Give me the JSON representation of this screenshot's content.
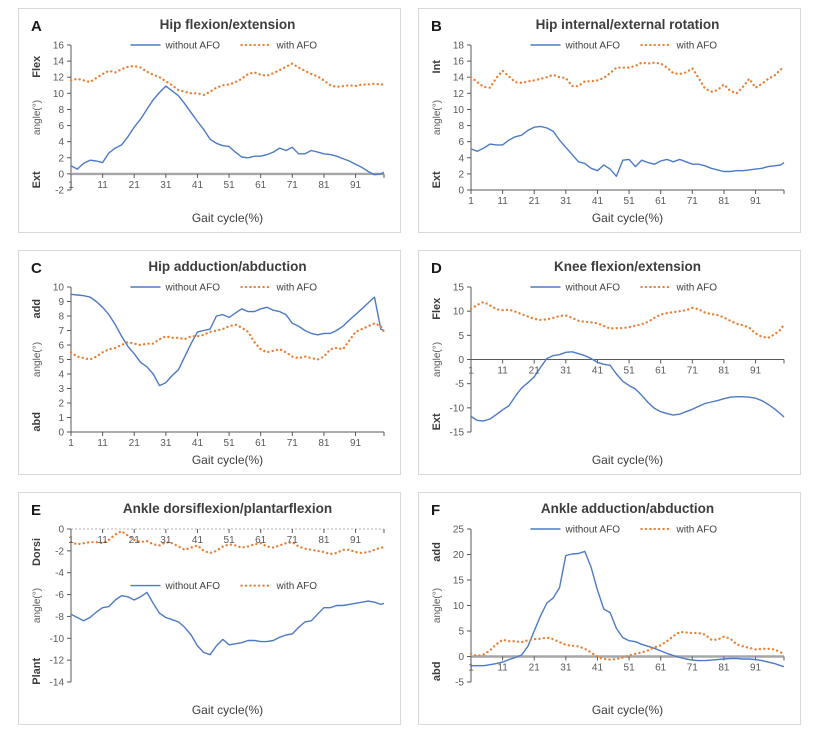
{
  "figure": {
    "background": "#ffffff",
    "panel_border_color": "#d9d9d9"
  },
  "colors": {
    "without_afo": "#4d7ac7",
    "with_afo": "#ED7D31",
    "spine": "#595959",
    "tick_label": "#595959",
    "title": "#3d3d3d",
    "panel_letter": "#1a1a1a",
    "zero_line_bold": "#a6a6a6",
    "zero_line_dotted": "#b3b3b3",
    "legend_text": "#404040"
  },
  "legend_labels": {
    "series1": "without AFO",
    "series2": "with AFO"
  },
  "gait_cycle_x": [
    1,
    3,
    5,
    7,
    9,
    11,
    13,
    15,
    17,
    19,
    21,
    23,
    25,
    27,
    29,
    31,
    33,
    35,
    37,
    39,
    41,
    43,
    45,
    47,
    49,
    51,
    53,
    55,
    57,
    59,
    61,
    63,
    65,
    67,
    69,
    71,
    73,
    75,
    77,
    79,
    81,
    83,
    85,
    87,
    89,
    91,
    93,
    95,
    97,
    99,
    100
  ],
  "chart_data": [
    {
      "type": "line",
      "letter": "A",
      "title": "Hip flexion/extension",
      "xlabel": "Gait cycle(%)",
      "xlim": [
        1,
        100
      ],
      "xtick_labels": [
        1,
        11,
        21,
        31,
        41,
        51,
        61,
        71,
        81,
        91
      ],
      "ylim": [
        -2,
        16
      ],
      "ystep": 2,
      "y_side_labels": {
        "top": "Flex",
        "mid": "angle(°)",
        "bottom": "Ext"
      },
      "zero_axis": "bold",
      "legend_frac": 0,
      "grid": false,
      "legend_position": "top-center",
      "series": [
        {
          "name": "without AFO",
          "style": "solid",
          "values": [
            1.0,
            0.6,
            1.3,
            1.7,
            1.6,
            1.4,
            2.6,
            3.2,
            3.6,
            4.6,
            5.8,
            6.8,
            8.0,
            9.2,
            10.1,
            10.9,
            10.3,
            9.7,
            8.7,
            7.6,
            6.5,
            5.5,
            4.3,
            3.8,
            3.5,
            3.4,
            2.7,
            2.1,
            2.0,
            2.2,
            2.2,
            2.4,
            2.7,
            3.2,
            2.9,
            3.3,
            2.5,
            2.5,
            2.9,
            2.7,
            2.5,
            2.4,
            2.2,
            1.9,
            1.6,
            1.2,
            0.8,
            0.3,
            -0.1,
            0.0,
            0.2
          ]
        },
        {
          "name": "with AFO",
          "style": "dotted",
          "values": [
            11.6,
            11.8,
            11.6,
            11.4,
            11.9,
            12.4,
            12.8,
            12.6,
            13.0,
            13.3,
            13.4,
            13.2,
            12.7,
            12.3,
            12.0,
            11.5,
            11.0,
            10.4,
            10.2,
            10.0,
            10.0,
            9.8,
            10.2,
            10.7,
            11.0,
            11.1,
            11.4,
            11.8,
            12.4,
            12.6,
            12.3,
            12.2,
            12.5,
            12.9,
            13.3,
            13.7,
            13.2,
            12.8,
            12.4,
            12.1,
            11.6,
            11.0,
            10.8,
            10.9,
            11.0,
            10.9,
            11.1,
            11.1,
            11.2,
            11.1,
            11.1
          ]
        }
      ]
    },
    {
      "type": "line",
      "letter": "B",
      "title": "Hip internal/external rotation",
      "xlabel": "Gait cycle(%)",
      "xlim": [
        1,
        100
      ],
      "xtick_labels": [
        1,
        11,
        21,
        31,
        41,
        51,
        61,
        71,
        81,
        91
      ],
      "ylim": [
        0,
        18
      ],
      "ystep": 2,
      "y_side_labels": {
        "top": "Int",
        "mid": "angle(°)",
        "bottom": "Ext"
      },
      "zero_axis": "thin",
      "legend_frac": 0,
      "grid": false,
      "legend_position": "top-center",
      "series": [
        {
          "name": "without AFO",
          "style": "solid",
          "values": [
            5.1,
            4.8,
            5.2,
            5.7,
            5.6,
            5.6,
            6.2,
            6.6,
            6.8,
            7.4,
            7.8,
            7.9,
            7.7,
            7.3,
            6.2,
            5.3,
            4.4,
            3.5,
            3.3,
            2.7,
            2.4,
            3.1,
            2.6,
            1.7,
            3.7,
            3.8,
            2.9,
            3.7,
            3.4,
            3.2,
            3.6,
            3.8,
            3.5,
            3.8,
            3.5,
            3.2,
            3.2,
            3.0,
            2.7,
            2.5,
            2.3,
            2.3,
            2.4,
            2.4,
            2.5,
            2.6,
            2.7,
            2.9,
            3.0,
            3.1,
            3.4
          ]
        },
        {
          "name": "with AFO",
          "style": "dotted",
          "values": [
            14.0,
            13.4,
            12.8,
            12.7,
            13.9,
            14.8,
            14.1,
            13.4,
            13.3,
            13.5,
            13.6,
            13.8,
            14.0,
            14.3,
            14.0,
            13.9,
            12.9,
            12.9,
            13.5,
            13.5,
            13.6,
            13.9,
            14.5,
            15.2,
            15.2,
            15.2,
            15.4,
            15.8,
            15.7,
            15.8,
            15.7,
            15.2,
            14.5,
            14.4,
            14.6,
            15.1,
            13.9,
            12.6,
            12.2,
            12.4,
            13.1,
            12.3,
            12.0,
            12.8,
            13.8,
            12.7,
            13.2,
            13.8,
            14.2,
            15.0,
            14.9
          ]
        }
      ]
    },
    {
      "type": "line",
      "letter": "C",
      "title": "Hip adduction/abduction",
      "xlabel": "Gait cycle(%)",
      "xlim": [
        1,
        100
      ],
      "xtick_labels": [
        1,
        11,
        21,
        31,
        41,
        51,
        61,
        71,
        81,
        91
      ],
      "ylim": [
        0,
        10
      ],
      "ystep": 1,
      "y_side_labels": {
        "top": "add",
        "mid": "angle(°)",
        "bottom": "abd"
      },
      "zero_axis": "thin",
      "legend_frac": 0,
      "grid": false,
      "legend_position": "top-center",
      "series": [
        {
          "name": "without AFO",
          "style": "solid",
          "values": [
            9.5,
            9.45,
            9.4,
            9.3,
            9.0,
            8.6,
            8.1,
            7.4,
            6.6,
            5.9,
            5.4,
            4.8,
            4.5,
            4.0,
            3.2,
            3.4,
            3.9,
            4.3,
            5.2,
            6.1,
            6.9,
            7.0,
            7.1,
            8.0,
            8.1,
            7.9,
            8.2,
            8.5,
            8.3,
            8.3,
            8.5,
            8.6,
            8.4,
            8.3,
            8.1,
            7.5,
            7.3,
            7.0,
            6.8,
            6.7,
            6.8,
            6.8,
            7.0,
            7.3,
            7.7,
            8.1,
            8.5,
            8.9,
            9.3,
            7.1,
            7.0
          ]
        },
        {
          "name": "with AFO",
          "style": "dotted",
          "values": [
            5.5,
            5.2,
            5.1,
            5.0,
            5.2,
            5.5,
            5.7,
            5.8,
            6.0,
            6.2,
            6.1,
            6.0,
            6.1,
            6.1,
            6.4,
            6.6,
            6.5,
            6.5,
            6.4,
            6.6,
            6.6,
            6.7,
            6.9,
            7.0,
            7.1,
            7.3,
            7.4,
            7.2,
            6.9,
            6.2,
            5.7,
            5.5,
            5.6,
            5.7,
            5.5,
            5.2,
            5.1,
            5.2,
            5.1,
            5.0,
            5.2,
            5.7,
            5.8,
            5.7,
            6.3,
            6.9,
            7.1,
            7.3,
            7.5,
            7.3,
            6.9
          ]
        }
      ]
    },
    {
      "type": "line",
      "letter": "D",
      "title": "Knee flexion/extension",
      "xlabel": "Gait cycle(%)",
      "xlim": [
        1,
        100
      ],
      "xtick_labels": [
        1,
        11,
        21,
        31,
        41,
        51,
        61,
        71,
        81,
        91
      ],
      "ylim": [
        -15,
        15
      ],
      "ystep": 5,
      "y_side_labels": {
        "top": "Flex",
        "mid": "angle(°)",
        "bottom": "Ext"
      },
      "zero_axis": "thin",
      "legend_frac": 0,
      "grid": false,
      "legend_position": "top-center",
      "series": [
        {
          "name": "without AFO",
          "style": "solid",
          "values": [
            -11.8,
            -12.6,
            -12.7,
            -12.3,
            -11.4,
            -10.4,
            -9.6,
            -7.6,
            -5.9,
            -4.8,
            -3.6,
            -1.6,
            0.2,
            0.8,
            1.0,
            1.5,
            1.6,
            1.2,
            0.8,
            0.2,
            -0.6,
            -1.0,
            -1.2,
            -3.0,
            -4.5,
            -5.4,
            -6.1,
            -7.4,
            -8.9,
            -10.1,
            -10.8,
            -11.2,
            -11.5,
            -11.3,
            -10.8,
            -10.3,
            -9.7,
            -9.1,
            -8.8,
            -8.5,
            -8.1,
            -7.8,
            -7.7,
            -7.7,
            -7.8,
            -8.0,
            -8.5,
            -9.3,
            -10.2,
            -11.3,
            -11.9
          ]
        },
        {
          "name": "with AFO",
          "style": "dotted",
          "values": [
            10.5,
            11.3,
            11.9,
            11.2,
            10.4,
            10.2,
            10.3,
            9.9,
            9.4,
            8.9,
            8.4,
            8.2,
            8.3,
            8.6,
            9.0,
            9.1,
            8.6,
            8.0,
            7.8,
            7.7,
            7.5,
            6.9,
            6.4,
            6.5,
            6.5,
            6.7,
            7.0,
            7.3,
            7.8,
            8.6,
            9.3,
            9.6,
            9.8,
            10.0,
            10.2,
            10.7,
            10.4,
            9.7,
            9.4,
            9.2,
            8.7,
            8.0,
            7.4,
            7.1,
            6.6,
            5.4,
            4.7,
            4.5,
            5.2,
            6.2,
            7.3
          ]
        }
      ]
    },
    {
      "type": "line",
      "letter": "E",
      "title": "Ankle dorsiflexion/plantarflexion",
      "xlabel": "Gait cycle(%)",
      "xlim": [
        1,
        100
      ],
      "xtick_labels": [
        1,
        11,
        21,
        31,
        41,
        51,
        61,
        71,
        81,
        91
      ],
      "ylim": [
        -14,
        0
      ],
      "ystep": 2,
      "y_side_labels": {
        "top": "Dorsi",
        "mid": "angle(°)",
        "bottom": "Plant"
      },
      "zero_axis": "dotted",
      "legend_frac": 0.37,
      "grid": false,
      "legend_position": "middle-center",
      "series": [
        {
          "name": "without AFO",
          "style": "solid",
          "values": [
            -7.8,
            -8.1,
            -8.4,
            -8.1,
            -7.6,
            -7.2,
            -7.1,
            -6.5,
            -6.1,
            -6.2,
            -6.5,
            -6.2,
            -5.8,
            -6.8,
            -7.7,
            -8.1,
            -8.3,
            -8.5,
            -9.0,
            -9.7,
            -10.7,
            -11.3,
            -11.5,
            -10.7,
            -10.1,
            -10.6,
            -10.5,
            -10.4,
            -10.2,
            -10.2,
            -10.3,
            -10.3,
            -10.2,
            -9.9,
            -9.7,
            -9.6,
            -9.0,
            -8.5,
            -8.4,
            -7.8,
            -7.2,
            -7.2,
            -7.0,
            -7.0,
            -6.9,
            -6.8,
            -6.7,
            -6.6,
            -6.7,
            -6.9,
            -6.8
          ]
        },
        {
          "name": "with AFO",
          "style": "dotted",
          "values": [
            -1.2,
            -1.4,
            -1.3,
            -1.2,
            -1.2,
            -1.3,
            -1.0,
            -0.5,
            -0.2,
            -0.6,
            -1.0,
            -1.2,
            -1.1,
            -1.4,
            -1.5,
            -1.2,
            -1.3,
            -1.6,
            -1.9,
            -1.7,
            -1.5,
            -2.0,
            -2.2,
            -2.0,
            -1.6,
            -1.4,
            -1.5,
            -1.7,
            -1.6,
            -1.4,
            -1.3,
            -1.6,
            -1.7,
            -1.5,
            -1.3,
            -1.2,
            -1.6,
            -1.8,
            -1.9,
            -2.0,
            -2.1,
            -2.3,
            -2.2,
            -1.9,
            -1.9,
            -2.1,
            -2.2,
            -2.1,
            -1.9,
            -1.7,
            -1.7
          ]
        }
      ]
    },
    {
      "type": "line",
      "letter": "F",
      "title": "Ankle adduction/abduction",
      "xlabel": "Gait cycle(%)",
      "xlim": [
        1,
        100
      ],
      "xtick_labels": [
        1,
        11,
        21,
        31,
        41,
        51,
        61,
        71,
        81,
        91
      ],
      "ylim": [
        -5,
        25
      ],
      "ystep": 5,
      "y_side_labels": {
        "top": "add",
        "mid": "angle(°)",
        "bottom": "abd"
      },
      "zero_axis": "bold",
      "legend_frac": 0,
      "grid": false,
      "legend_position": "top-center",
      "series": [
        {
          "name": "without AFO",
          "style": "solid",
          "values": [
            -1.8,
            -1.8,
            -1.8,
            -1.6,
            -1.4,
            -1.1,
            -0.6,
            -0.2,
            0.3,
            2.0,
            5.0,
            8.0,
            10.5,
            11.5,
            13.5,
            19.8,
            20.1,
            20.2,
            20.6,
            17.5,
            13.0,
            9.3,
            8.6,
            5.5,
            3.7,
            3.1,
            2.9,
            2.4,
            2.0,
            1.6,
            1.1,
            0.6,
            0.2,
            -0.2,
            -0.5,
            -0.7,
            -0.8,
            -0.8,
            -0.7,
            -0.6,
            -0.5,
            -0.4,
            -0.4,
            -0.5,
            -0.5,
            -0.6,
            -0.8,
            -1.1,
            -1.4,
            -1.8,
            -2.0
          ]
        },
        {
          "name": "with AFO",
          "style": "dotted",
          "values": [
            0.5,
            0.1,
            0.4,
            1.2,
            2.4,
            3.3,
            3.0,
            3.0,
            2.8,
            3.2,
            3.4,
            3.5,
            3.7,
            3.4,
            2.8,
            2.3,
            2.1,
            2.0,
            1.5,
            0.8,
            -0.1,
            -0.5,
            -0.6,
            -0.5,
            -0.2,
            0.2,
            0.5,
            0.8,
            1.2,
            1.8,
            2.2,
            3.0,
            4.0,
            4.8,
            4.7,
            4.6,
            4.6,
            4.3,
            3.3,
            3.3,
            3.9,
            3.5,
            2.4,
            2.0,
            1.7,
            1.4,
            1.5,
            1.5,
            1.4,
            0.8,
            0.4
          ]
        }
      ]
    }
  ]
}
